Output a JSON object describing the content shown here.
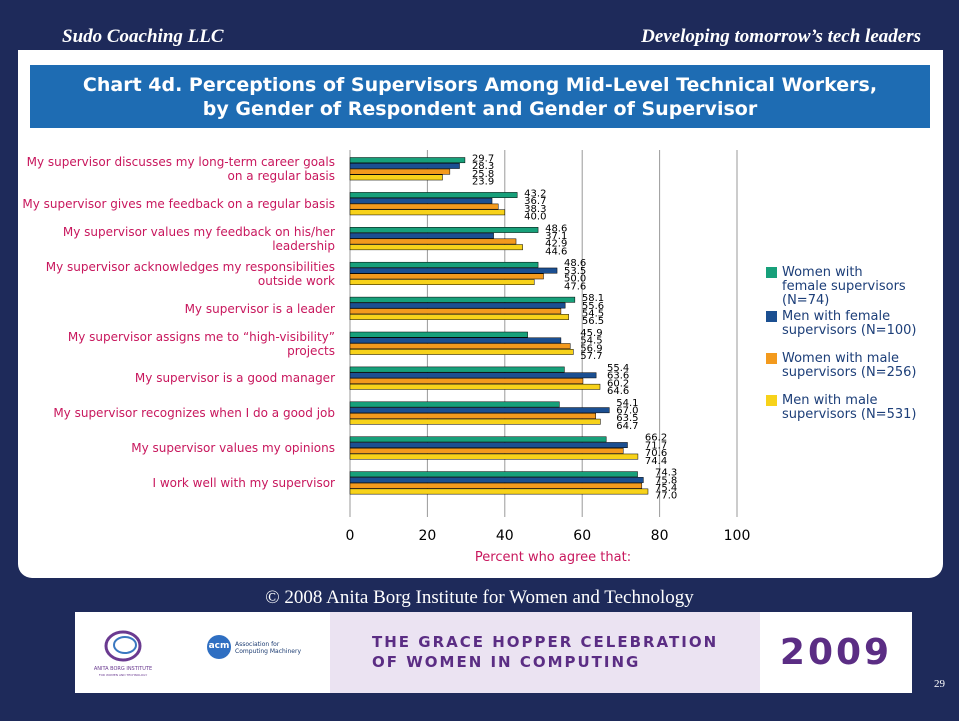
{
  "header": {
    "left": "Sudo Coaching LLC",
    "right": "Developing tomorrow’s tech leaders"
  },
  "chart_data": {
    "type": "hbar",
    "title": "Chart 4d. Perceptions of Supervisors Among Mid-Level Technical Workers,\nby Gender of Respondent and Gender of Supervisor",
    "x_label": "Percent who agree that:",
    "categories": [
      "My supervisor discusses my long-term career goals\non a regular basis",
      "My supervisor gives me feedback on a regular basis",
      "My supervisor values my feedback on his/her\nleadership",
      "My supervisor acknowledges my responsibilities\noutside work",
      "My supervisor is a leader",
      "My supervisor assigns me to “high-visibility”\nprojects",
      "My supervisor is a good manager",
      "My supervisor recognizes when I do a good job",
      "My supervisor values my opinions",
      "I work well with my supervisor"
    ],
    "series": [
      {
        "name": "Women with\nfemale supervisors\n(N=74)",
        "color": "#17a07a",
        "values": [
          29.7,
          43.2,
          48.6,
          48.6,
          58.1,
          45.9,
          55.4,
          54.1,
          66.2,
          74.3
        ],
        "value_labels": [
          "29.7",
          "43.2",
          "48.6",
          "48.6",
          "58.1",
          "45.9",
          "55.4",
          "54.1",
          "66.2",
          "74.3"
        ]
      },
      {
        "name": "Men with female\nsupervisors (N=100)",
        "color": "#1b4f91",
        "values": [
          28.3,
          36.7,
          37.1,
          53.5,
          55.6,
          54.5,
          63.6,
          67.0,
          71.7,
          75.8
        ],
        "value_labels": [
          "28.3",
          "36.7",
          "37.1",
          "53.5",
          "55.6",
          "54.5",
          "63.6",
          "67.0",
          "71.7",
          "75.8"
        ]
      },
      {
        "name": "Women with male\nsupervisors (N=256)",
        "color": "#f39a1d",
        "values": [
          25.8,
          38.3,
          42.9,
          50.0,
          54.5,
          56.9,
          60.2,
          63.5,
          70.6,
          75.4
        ],
        "value_labels": [
          "25.8",
          "38.3",
          "42.9",
          "50.0",
          "54.5",
          "56.9",
          "60.2",
          "63.5",
          "70.6",
          "75.4"
        ]
      },
      {
        "name": "Men with male\nsupervisors (N=531)",
        "color": "#f7d21a",
        "values": [
          23.9,
          40.0,
          44.6,
          47.6,
          56.5,
          57.7,
          64.6,
          64.7,
          74.4,
          77.0
        ],
        "value_labels": [
          "23.9",
          "40.0",
          "44.6",
          "47.6",
          "56.5",
          "57.7",
          "64.6",
          "64.7",
          "74.4",
          "77.0"
        ]
      }
    ],
    "xlim": [
      0,
      100
    ],
    "xticks": [
      0,
      20,
      40,
      60,
      80,
      100
    ],
    "grid": true,
    "legend": "right"
  },
  "footer": {
    "copyright": "© 2008 Anita Borg Institute for Women and Technology",
    "logo1": "ANITA BORG INSTITUTE",
    "logo1_sub": "FOR WOMEN AND TECHNOLOGY",
    "logo2_mark": "acm",
    "logo2": "Association for\nComputing Machinery",
    "event": "THE GRACE HOPPER CELEBRATION\nOF WOMEN IN COMPUTING",
    "year": "2009",
    "page": "29"
  }
}
